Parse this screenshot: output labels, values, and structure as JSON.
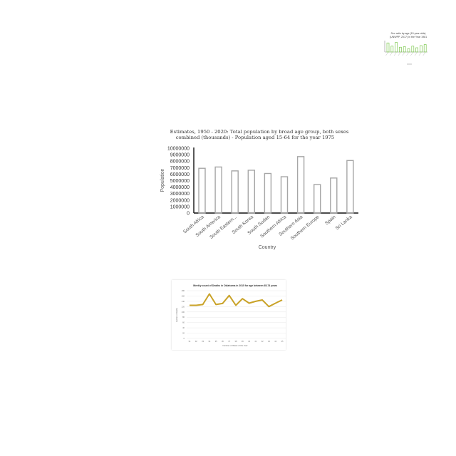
{
  "chart_data": [
    {
      "type": "bar",
      "title_lines": [
        "Sex ratio by age (15 year olds)",
        "(UNWPP, 2017) in the Year 1981"
      ],
      "categories": [
        "",
        "",
        "",
        "",
        "",
        "",
        "",
        "",
        "",
        ""
      ],
      "values": [
        0.85,
        0.55,
        0.9,
        0.45,
        0.5,
        0.3,
        0.55,
        0.4,
        0.6,
        0.7
      ],
      "ylim": [
        0,
        1
      ],
      "xlabel": "",
      "ylabel": "",
      "colors": {
        "bar": "#7ec850"
      }
    },
    {
      "type": "bar",
      "title_lines": [
        "Estimates, 1950 - 2020: Total population by broad age group, both sexes",
        "combined (thousands) - Population aged 15-64 for the year 1975"
      ],
      "categories": [
        "South Africa",
        "South America",
        "South Eastern...",
        "South Korea",
        "South Sudan",
        "Southern Africa",
        "Southern Asia",
        "Southern Europe",
        "Spain",
        "Sri Lanka"
      ],
      "values": [
        6900000,
        7100000,
        6500000,
        6600000,
        6100000,
        5600000,
        8700000,
        4400000,
        5400000,
        8100000
      ],
      "yticks": [
        "10000000",
        "9000000",
        "8000000",
        "7000000",
        "6000000",
        "5000000",
        "4000000",
        "3000000",
        "2000000",
        "1000000",
        "0"
      ],
      "ylim": [
        0,
        10000000
      ],
      "xlabel": "Country",
      "ylabel": "Population",
      "colors": {
        "bar_stroke": "#a6a6a6",
        "axis": "#111111"
      }
    },
    {
      "type": "line",
      "title": "Weekly count of Deaths in Oklahoma in 2015 for age between 65-74 years",
      "x": [
        "31",
        "32",
        "33",
        "34",
        "35",
        "36",
        "37",
        "38",
        "39",
        "40",
        "41",
        "42",
        "43",
        "44",
        "45"
      ],
      "values": [
        125,
        125,
        128,
        168,
        128,
        132,
        162,
        125,
        150,
        133,
        140,
        145,
        120,
        133,
        145
      ],
      "yticks": [
        "180",
        "160",
        "140",
        "120",
        "100",
        "80",
        "60",
        "40",
        "20",
        "0"
      ],
      "ylim": [
        0,
        180
      ],
      "xlabel": "Number of Week of the Year",
      "ylabel": "number of deaths",
      "colors": {
        "line": "#c9a227"
      }
    }
  ]
}
